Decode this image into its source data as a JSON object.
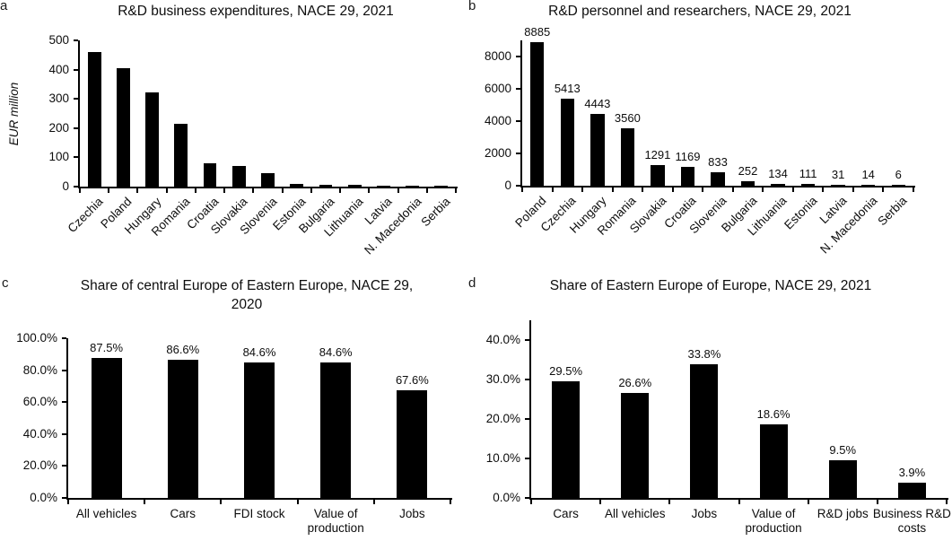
{
  "figure": {
    "background": "#ffffff",
    "bar_color": "#000000",
    "text_color": "#0d0d0d"
  },
  "chart_data": [
    {
      "id": "a",
      "panel_label": "a",
      "type": "bar",
      "title": "R&D business expenditures, NACE 29, 2021",
      "title_lines": [
        "R&D business expenditures, NACE 29, 2021"
      ],
      "xlabel": "",
      "ylabel": "EUR million",
      "categories": [
        "Czechia",
        "Poland",
        "Hungary",
        "Romania",
        "Croatia",
        "Slovakia",
        "Slovenia",
        "Estonia",
        "Bulgaria",
        "Lithuania",
        "Latvia",
        "N. Macedonia",
        "Serbia"
      ],
      "values": [
        460,
        405,
        322,
        215,
        81,
        70,
        46,
        8,
        6,
        6,
        3,
        3,
        3
      ],
      "value_labels": null,
      "ytick_values": [
        0,
        100,
        200,
        300,
        400,
        500
      ],
      "ytick_labels": [
        "0",
        "100",
        "200",
        "300",
        "400",
        "500"
      ],
      "ylim": [
        0,
        500
      ],
      "grid": false,
      "legend": null,
      "rotated_xlabels": true
    },
    {
      "id": "b",
      "panel_label": "b",
      "type": "bar",
      "title": "R&D personnel and researchers, NACE 29, 2021",
      "title_lines": [
        "R&D personnel and researchers, NACE 29, 2021"
      ],
      "xlabel": "",
      "ylabel": null,
      "categories": [
        "Poland",
        "Czechia",
        "Hungary",
        "Romania",
        "Slovakia",
        "Croatia",
        "Slovenia",
        "Bulgaria",
        "Lithuania",
        "Estonia",
        "Latvia",
        "N. Macedonia",
        "Serbia"
      ],
      "values": [
        8885,
        5413,
        4443,
        3560,
        1291,
        1169,
        833,
        252,
        134,
        111,
        31,
        14,
        6
      ],
      "value_labels": [
        "8885",
        "5413",
        "4443",
        "3560",
        "1291",
        "1169",
        "833",
        "252",
        "134",
        "111",
        "31",
        "14",
        "6"
      ],
      "ytick_values": [
        0,
        2000,
        4000,
        6000,
        8000
      ],
      "ytick_labels": [
        "0",
        "2000",
        "4000",
        "6000",
        "8000"
      ],
      "ylim": [
        0,
        9000
      ],
      "grid": false,
      "legend": null,
      "rotated_xlabels": true
    },
    {
      "id": "c",
      "panel_label": "c",
      "type": "bar",
      "title": "Share of central Europe of Eastern Europe, NACE 29, 2020",
      "title_lines": [
        "Share of central Europe of Eastern Europe, NACE 29,",
        "2020"
      ],
      "xlabel": "",
      "ylabel": null,
      "categories": [
        "All vehicles",
        "Cars",
        "FDI stock",
        "Value of production",
        "Jobs"
      ],
      "values": [
        87.5,
        86.6,
        84.6,
        84.6,
        67.6
      ],
      "value_labels": [
        "87.5%",
        "86.6%",
        "84.6%",
        "84.6%",
        "67.6%"
      ],
      "ytick_values": [
        0,
        20,
        40,
        60,
        80,
        100
      ],
      "ytick_labels": [
        "0.0%",
        "20.0%",
        "40.0%",
        "60.0%",
        "80.0%",
        "100.0%"
      ],
      "ylim": [
        0,
        100
      ],
      "grid": false,
      "legend": null,
      "rotated_xlabels": false
    },
    {
      "id": "d",
      "panel_label": "d",
      "type": "bar",
      "title": "Share of Eastern Europe of Europe, NACE 29, 2021",
      "title_lines": [
        "Share of Eastern Europe of Europe, NACE 29, 2021"
      ],
      "xlabel": "",
      "ylabel": null,
      "categories": [
        "Cars",
        "All vehicles",
        "Jobs",
        "Value of production",
        "R&D jobs",
        "Business R&D costs"
      ],
      "values": [
        29.5,
        26.6,
        33.8,
        18.6,
        9.5,
        3.9
      ],
      "value_labels": [
        "29.5%",
        "26.6%",
        "33.8%",
        "18.6%",
        "9.5%",
        "3.9%"
      ],
      "ytick_values": [
        0,
        10,
        20,
        30,
        40
      ],
      "ytick_labels": [
        "0.0%",
        "10.0%",
        "20.0%",
        "30.0%",
        "40.0%"
      ],
      "ylim": [
        0,
        45
      ],
      "grid": false,
      "legend": null,
      "rotated_xlabels": false
    }
  ]
}
